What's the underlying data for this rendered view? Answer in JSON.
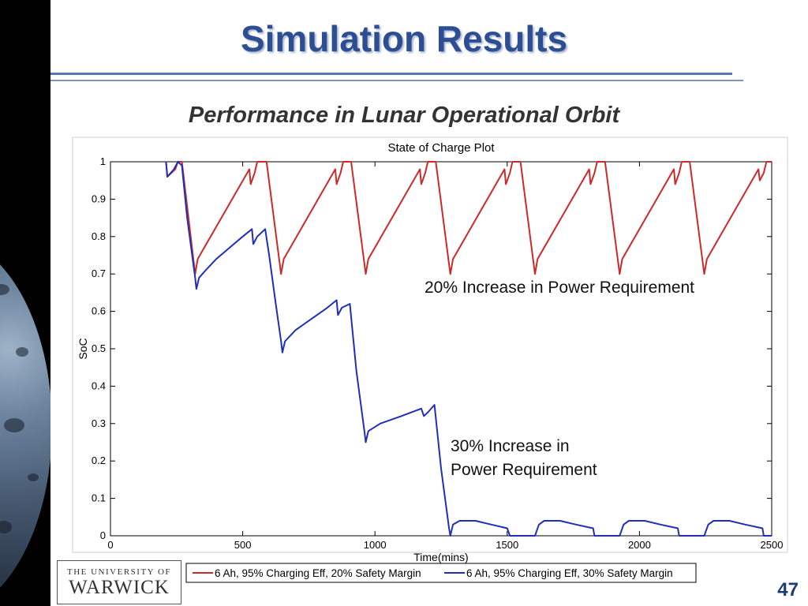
{
  "slide": {
    "title": "Simulation Results",
    "subtitle": "Performance in Lunar Operational Orbit",
    "page_number": "47",
    "logo_top": "THE UNIVERSITY OF",
    "logo_bottom": "WARWICK"
  },
  "annotations": {
    "red": "20% Increase in Power Requirement",
    "blue_line1": "30% Increase in",
    "blue_line2": "Power Requirement"
  },
  "colors": {
    "red": "#cc2a2a",
    "blue": "#1f2fb8",
    "title": "#2e4e93"
  },
  "chart_data": {
    "type": "line",
    "title": "State of Charge Plot",
    "xlabel": "Time(mins)",
    "ylabel": "SoC",
    "xlim": [
      0,
      2500
    ],
    "ylim": [
      0,
      1
    ],
    "xticks": [
      0,
      500,
      1000,
      1500,
      2000,
      2500
    ],
    "yticks": [
      0,
      0.1,
      0.2,
      0.3,
      0.4,
      0.5,
      0.6,
      0.7,
      0.8,
      0.9,
      1
    ],
    "ytick_labels": [
      "0",
      "0.1",
      "0.2",
      "0.3",
      "0.4",
      "0.5",
      "0.6",
      "0.7",
      "0.8",
      "0.9",
      "1"
    ],
    "grid": false,
    "legend_position": "bottom",
    "series": [
      {
        "name": "6 Ah, 95% Charging Eff, 20% Safety Margin",
        "color": "#cc2a2a",
        "points": [
          [
            210,
            1
          ],
          [
            215,
            0.96
          ],
          [
            245,
            0.98
          ],
          [
            255,
            1
          ],
          [
            270,
            1
          ],
          [
            320,
            0.7
          ],
          [
            330,
            0.74
          ],
          [
            525,
            0.98
          ],
          [
            530,
            0.94
          ],
          [
            545,
            0.97
          ],
          [
            555,
            1
          ],
          [
            590,
            1
          ],
          [
            645,
            0.7
          ],
          [
            655,
            0.74
          ],
          [
            850,
            0.98
          ],
          [
            855,
            0.94
          ],
          [
            870,
            0.97
          ],
          [
            880,
            1
          ],
          [
            910,
            1
          ],
          [
            965,
            0.7
          ],
          [
            975,
            0.74
          ],
          [
            1170,
            0.98
          ],
          [
            1175,
            0.94
          ],
          [
            1190,
            0.97
          ],
          [
            1200,
            1
          ],
          [
            1230,
            1
          ],
          [
            1285,
            0.7
          ],
          [
            1295,
            0.74
          ],
          [
            1490,
            0.98
          ],
          [
            1495,
            0.94
          ],
          [
            1510,
            0.97
          ],
          [
            1520,
            1
          ],
          [
            1550,
            1
          ],
          [
            1605,
            0.7
          ],
          [
            1615,
            0.74
          ],
          [
            1810,
            0.98
          ],
          [
            1815,
            0.94
          ],
          [
            1830,
            0.97
          ],
          [
            1840,
            1
          ],
          [
            1870,
            1
          ],
          [
            1925,
            0.7
          ],
          [
            1935,
            0.74
          ],
          [
            2130,
            0.98
          ],
          [
            2135,
            0.94
          ],
          [
            2150,
            0.97
          ],
          [
            2160,
            1
          ],
          [
            2190,
            1
          ],
          [
            2245,
            0.7
          ],
          [
            2255,
            0.74
          ],
          [
            2450,
            0.98
          ],
          [
            2455,
            0.95
          ],
          [
            2470,
            0.97
          ],
          [
            2480,
            1
          ],
          [
            2500,
            1
          ]
        ]
      },
      {
        "name": "6 Ah, 95% Charging Eff, 30% Safety Margin",
        "color": "#1f2fb8",
        "points": [
          [
            210,
            1
          ],
          [
            215,
            0.96
          ],
          [
            240,
            0.98
          ],
          [
            255,
            1
          ],
          [
            270,
            0.99
          ],
          [
            290,
            0.85
          ],
          [
            320,
            0.69
          ],
          [
            325,
            0.66
          ],
          [
            335,
            0.69
          ],
          [
            360,
            0.71
          ],
          [
            400,
            0.74
          ],
          [
            450,
            0.77
          ],
          [
            500,
            0.8
          ],
          [
            535,
            0.82
          ],
          [
            540,
            0.78
          ],
          [
            555,
            0.8
          ],
          [
            585,
            0.82
          ],
          [
            600,
            0.75
          ],
          [
            625,
            0.62
          ],
          [
            645,
            0.52
          ],
          [
            650,
            0.49
          ],
          [
            660,
            0.52
          ],
          [
            700,
            0.55
          ],
          [
            760,
            0.58
          ],
          [
            820,
            0.61
          ],
          [
            855,
            0.63
          ],
          [
            860,
            0.59
          ],
          [
            875,
            0.61
          ],
          [
            905,
            0.62
          ],
          [
            930,
            0.44
          ],
          [
            960,
            0.28
          ],
          [
            965,
            0.25
          ],
          [
            975,
            0.28
          ],
          [
            1020,
            0.3
          ],
          [
            1100,
            0.32
          ],
          [
            1175,
            0.34
          ],
          [
            1185,
            0.32
          ],
          [
            1200,
            0.33
          ],
          [
            1225,
            0.35
          ],
          [
            1250,
            0.18
          ],
          [
            1280,
            0.02
          ],
          [
            1285,
            0
          ],
          [
            1295,
            0.03
          ],
          [
            1320,
            0.04
          ],
          [
            1380,
            0.04
          ],
          [
            1440,
            0.03
          ],
          [
            1500,
            0.02
          ],
          [
            1510,
            0
          ],
          [
            1605,
            0
          ],
          [
            1620,
            0.03
          ],
          [
            1640,
            0.04
          ],
          [
            1700,
            0.04
          ],
          [
            1760,
            0.03
          ],
          [
            1825,
            0.02
          ],
          [
            1830,
            0
          ],
          [
            1925,
            0
          ],
          [
            1940,
            0.03
          ],
          [
            1960,
            0.04
          ],
          [
            2020,
            0.04
          ],
          [
            2080,
            0.03
          ],
          [
            2145,
            0.02
          ],
          [
            2150,
            0
          ],
          [
            2245,
            0
          ],
          [
            2260,
            0.03
          ],
          [
            2280,
            0.04
          ],
          [
            2340,
            0.04
          ],
          [
            2400,
            0.03
          ],
          [
            2465,
            0.02
          ],
          [
            2470,
            0
          ],
          [
            2500,
            0
          ]
        ]
      }
    ]
  }
}
